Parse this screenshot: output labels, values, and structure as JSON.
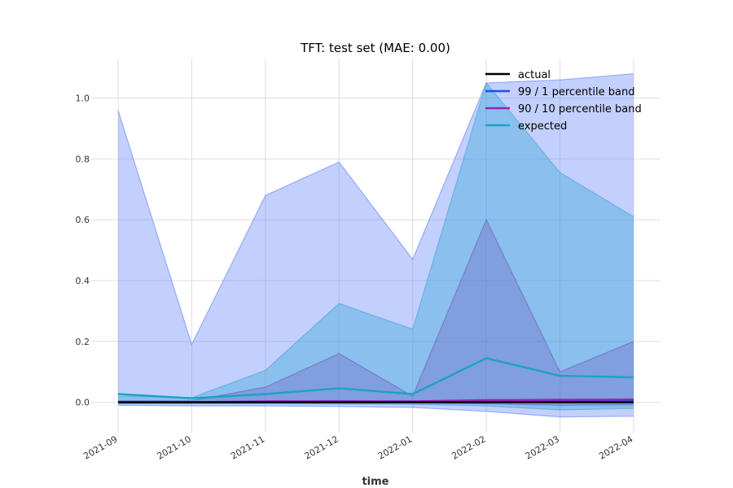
{
  "chart_data": {
    "type": "line",
    "title": "TFT: test set (MAE: 0.00)",
    "xlabel": "time",
    "ylabel": "",
    "x": [
      "2021-09",
      "2021-10",
      "2021-11",
      "2021-12",
      "2022-01",
      "2022-02",
      "2022-03",
      "2022-04"
    ],
    "ylim": [
      -0.1,
      1.13
    ],
    "yticks": [
      0.0,
      0.2,
      0.4,
      0.6,
      0.8,
      1.0
    ],
    "ytick_labels": [
      "0.0",
      "0.2",
      "0.4",
      "0.6",
      "0.8",
      "1.0"
    ],
    "grid": true,
    "legend_position": "top-right",
    "series": [
      {
        "name": "actual",
        "kind": "line",
        "color": "#000000",
        "values": [
          0.0,
          0.0,
          0.0,
          0.0,
          0.0,
          0.0,
          0.0,
          0.0
        ]
      },
      {
        "name": "99 / 1 percentile band",
        "kind": "line",
        "color": "#1f4ff0",
        "values": [
          0.0,
          0.0,
          0.002,
          0.003,
          0.002,
          0.005,
          0.006,
          0.007
        ]
      },
      {
        "name": "90 / 10 percentile band",
        "kind": "line",
        "color": "#9b1fb5",
        "values": [
          0.0,
          0.0,
          0.003,
          0.003,
          0.003,
          0.007,
          0.008,
          0.009
        ]
      },
      {
        "name": "expected",
        "kind": "line",
        "color": "#1ba3c6",
        "values": [
          0.027,
          0.013,
          0.027,
          0.046,
          0.027,
          0.145,
          0.087,
          0.082
        ]
      }
    ],
    "bands": [
      {
        "band": "99 / 1 percentile band",
        "fill": "#6f8cfb",
        "fill_opacity": 0.42,
        "edge": "#5c7df5",
        "upper": [
          0.96,
          0.19,
          0.68,
          0.79,
          0.47,
          1.05,
          1.06,
          1.08
        ],
        "lower": [
          -0.01,
          -0.012,
          -0.012,
          -0.014,
          -0.017,
          -0.03,
          -0.048,
          -0.046
        ]
      },
      {
        "band": "90 / 10 percentile band, outer",
        "fill": "#3ea9d8",
        "fill_opacity": 0.42,
        "edge": "#3aa6d6",
        "upper": [
          0.02,
          0.015,
          0.105,
          0.325,
          0.24,
          1.05,
          0.755,
          0.61
        ],
        "lower": [
          -0.005,
          -0.005,
          -0.005,
          -0.006,
          -0.007,
          -0.012,
          -0.025,
          -0.02
        ]
      },
      {
        "band": "90 / 10 percentile band, inner",
        "fill": "#6b53b8",
        "fill_opacity": 0.3,
        "edge": "#6a5ab8",
        "upper": [
          0.005,
          0.005,
          0.05,
          0.16,
          0.02,
          0.6,
          0.1,
          0.2
        ],
        "lower": [
          -0.002,
          -0.002,
          -0.002,
          -0.003,
          -0.003,
          -0.005,
          -0.01,
          -0.008
        ]
      }
    ]
  }
}
